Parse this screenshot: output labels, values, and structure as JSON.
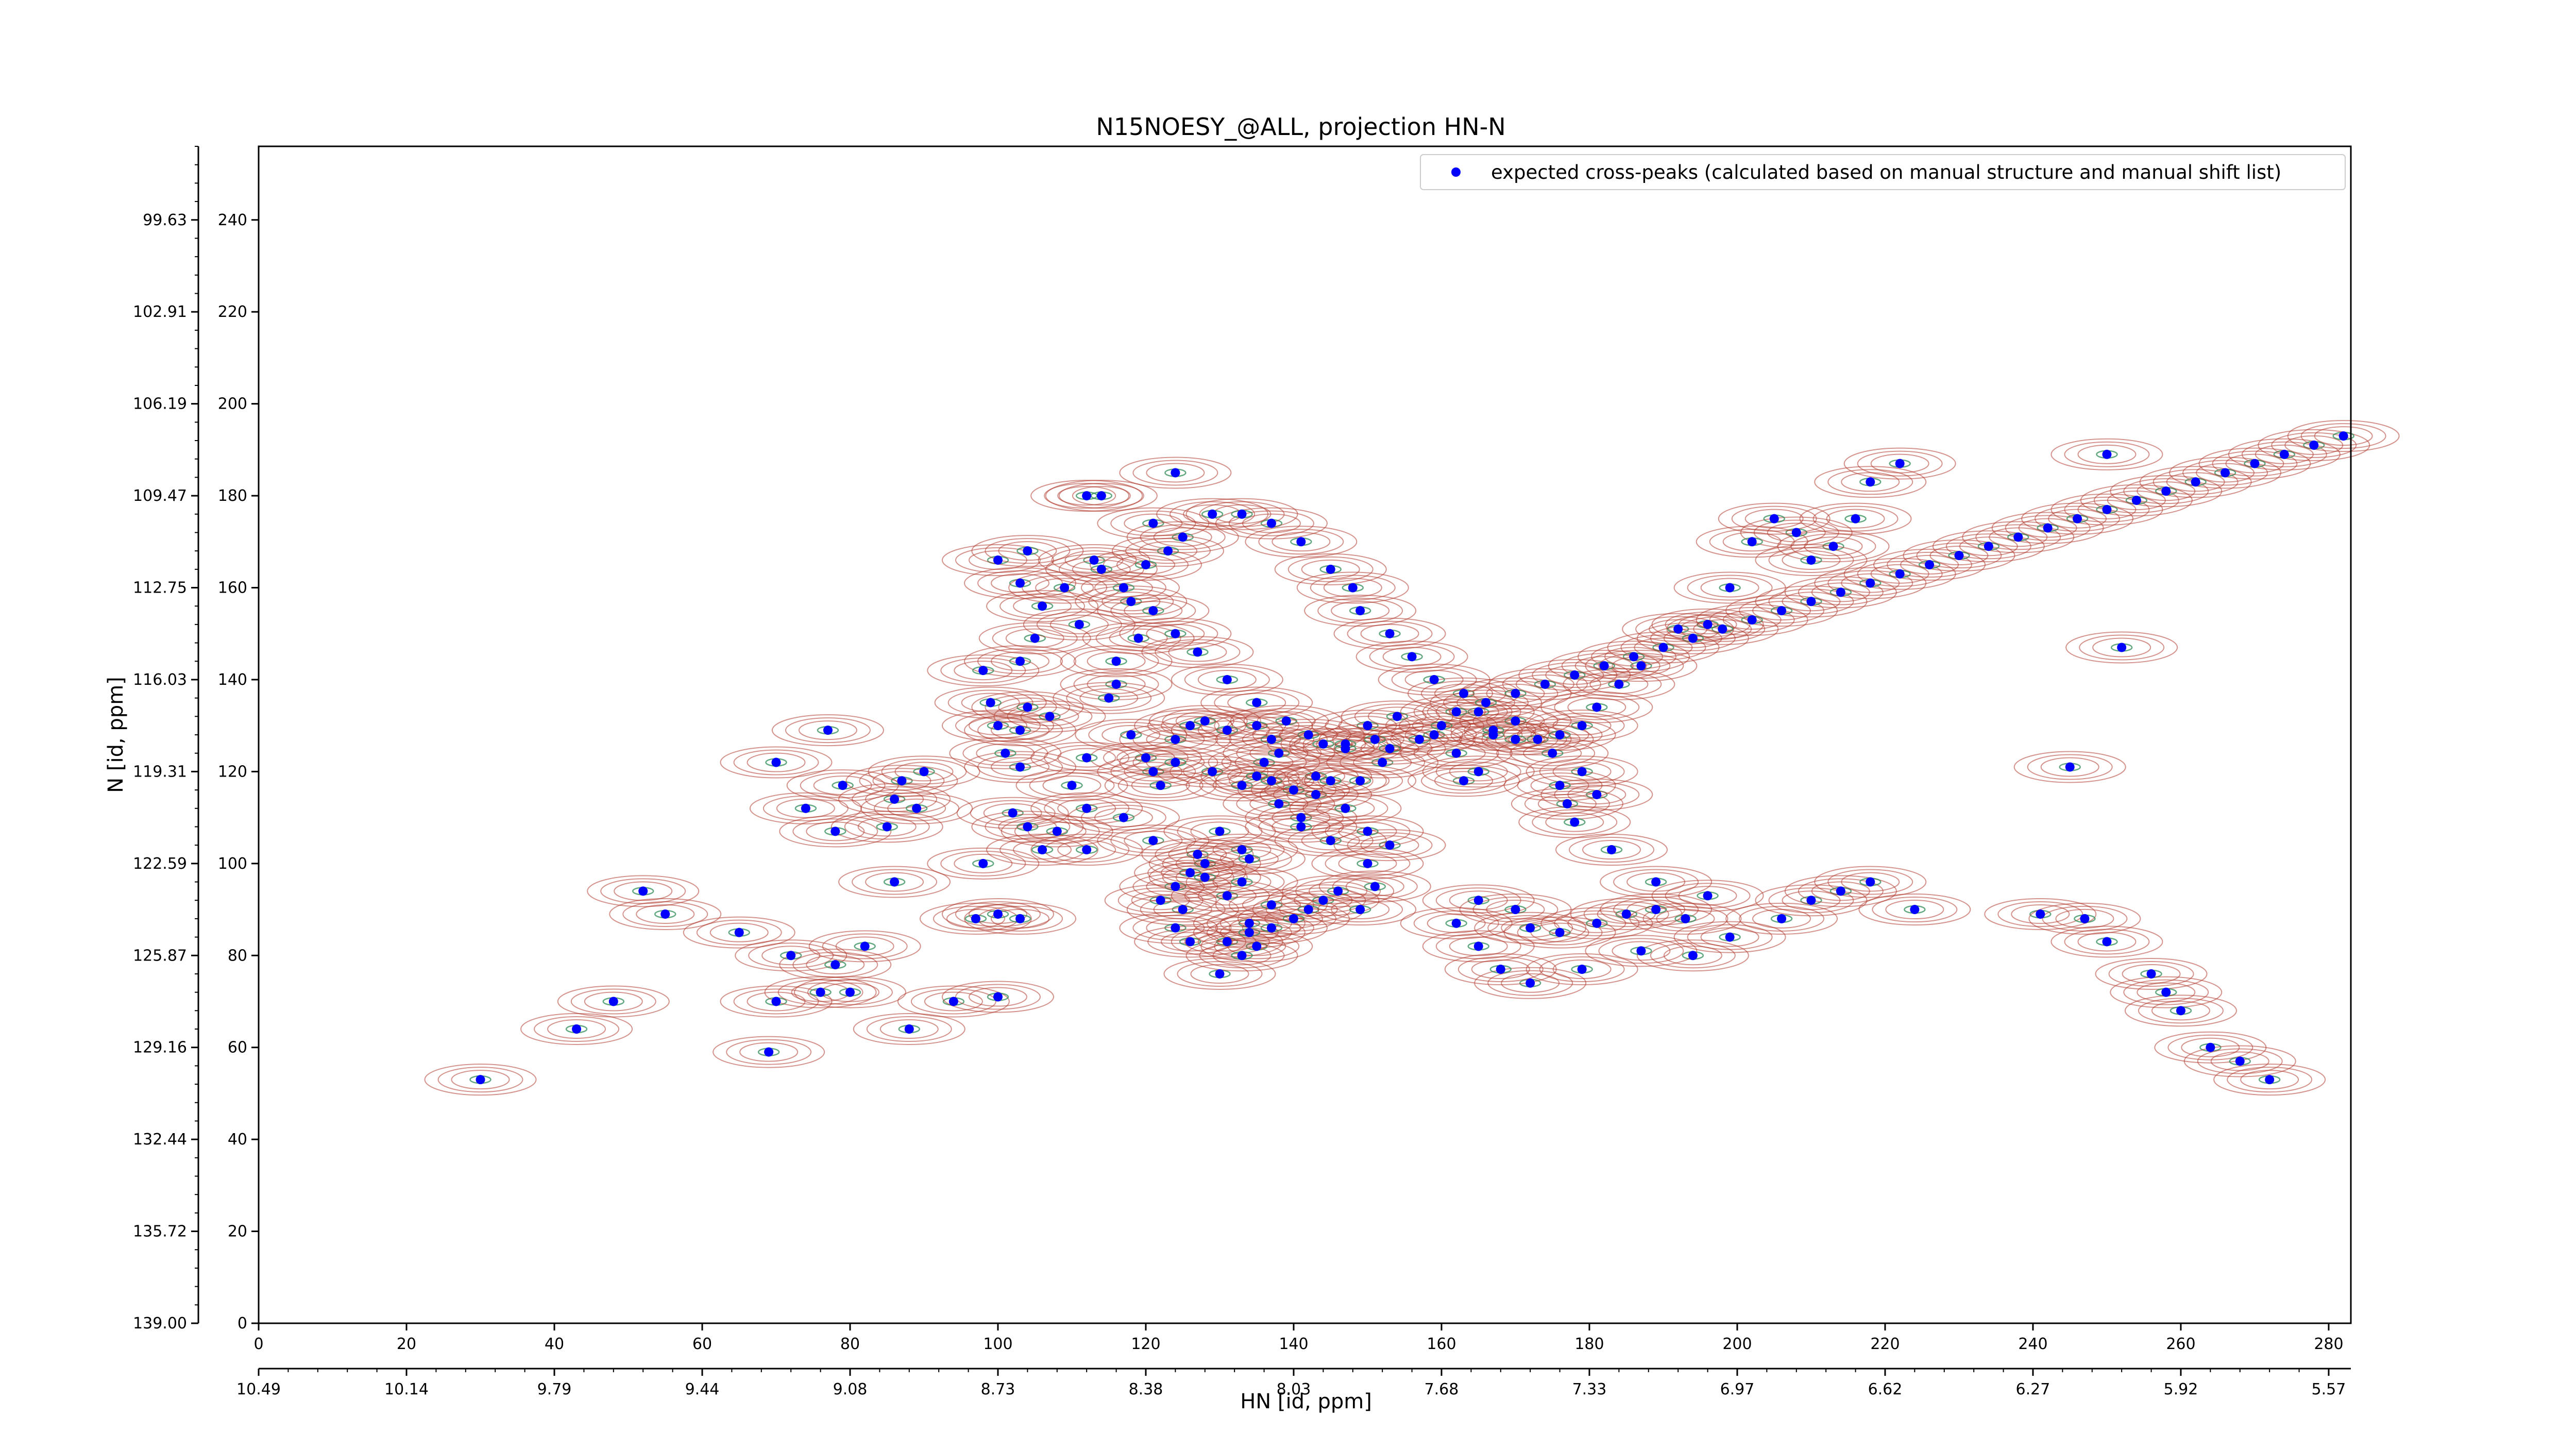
{
  "chart_data": {
    "type": "scatter",
    "title": "N15NOESY_@ALL, projection HN-N",
    "xlabel": "HN [id, ppm]",
    "ylabel": "N [id, ppm]",
    "x_index_ticks": [
      "0",
      "20",
      "40",
      "60",
      "80",
      "100",
      "120",
      "140",
      "160",
      "180",
      "200",
      "220",
      "240",
      "260",
      "280"
    ],
    "x_ppm_ticks": [
      "10.49",
      "10.14",
      "9.79",
      "9.44",
      "9.08",
      "8.73",
      "8.38",
      "8.03",
      "7.68",
      "7.33",
      "6.97",
      "6.62",
      "6.27",
      "5.92",
      "5.57"
    ],
    "y_index_ticks": [
      "0",
      "20",
      "40",
      "60",
      "80",
      "100",
      "120",
      "140",
      "160",
      "180",
      "200",
      "220",
      "240"
    ],
    "y_ppm_ticks": [
      "139.00",
      "135.72",
      "132.44",
      "129.16",
      "125.87",
      "122.59",
      "119.31",
      "116.03",
      "112.75",
      "109.47",
      "106.19",
      "102.91",
      "99.63"
    ],
    "xlim": [
      0,
      283
    ],
    "ylim": [
      0,
      256
    ],
    "grid": false,
    "legend_position": "top-right",
    "series": [
      {
        "name": "expected cross-peaks (calculated based on manual structure and manual shift list)",
        "color": "#0000ff",
        "points": [
          [
            30,
            53
          ],
          [
            43,
            64
          ],
          [
            48,
            70
          ],
          [
            55,
            89
          ],
          [
            52,
            94
          ],
          [
            65,
            85
          ],
          [
            69,
            59
          ],
          [
            70,
            70
          ],
          [
            72,
            80
          ],
          [
            76,
            72
          ],
          [
            78,
            78
          ],
          [
            80,
            72
          ],
          [
            82,
            82
          ],
          [
            78,
            107
          ],
          [
            79,
            117
          ],
          [
            70,
            122
          ],
          [
            74,
            112
          ],
          [
            77,
            129
          ],
          [
            86,
            96
          ],
          [
            85,
            108
          ],
          [
            86,
            114
          ],
          [
            89,
            112
          ],
          [
            87,
            118
          ],
          [
            90,
            120
          ],
          [
            88,
            64
          ],
          [
            94,
            70
          ],
          [
            97,
            88
          ],
          [
            100,
            89
          ],
          [
            103,
            88
          ],
          [
            100,
            71
          ],
          [
            98,
            100
          ],
          [
            102,
            111
          ],
          [
            104,
            108
          ],
          [
            103,
            121
          ],
          [
            101,
            124
          ],
          [
            100,
            130
          ],
          [
            103,
            129
          ],
          [
            103,
            144
          ],
          [
            105,
            149
          ],
          [
            107,
            132
          ],
          [
            104,
            134
          ],
          [
            99,
            135
          ],
          [
            98,
            142
          ],
          [
            100,
            166
          ],
          [
            103,
            161
          ],
          [
            104,
            168
          ],
          [
            106,
            156
          ],
          [
            109,
            160
          ],
          [
            111,
            152
          ],
          [
            113,
            166
          ],
          [
            112,
            180
          ],
          [
            114,
            180
          ],
          [
            121,
            174
          ],
          [
            124,
            185
          ],
          [
            114,
            164
          ],
          [
            118,
            157
          ],
          [
            116,
            144
          ],
          [
            119,
            149
          ],
          [
            116,
            139
          ],
          [
            115,
            136
          ],
          [
            118,
            128
          ],
          [
            120,
            123
          ],
          [
            121,
            120
          ],
          [
            122,
            117
          ],
          [
            112,
            123
          ],
          [
            110,
            117
          ],
          [
            112,
            112
          ],
          [
            108,
            107
          ],
          [
            106,
            103
          ],
          [
            112,
            103
          ],
          [
            117,
            110
          ],
          [
            121,
            105
          ],
          [
            127,
            102
          ],
          [
            128,
            100
          ],
          [
            130,
            107
          ],
          [
            133,
            103
          ],
          [
            134,
            101
          ],
          [
            125,
            90
          ],
          [
            124,
            86
          ],
          [
            126,
            83
          ],
          [
            122,
            92
          ],
          [
            124,
            95
          ],
          [
            126,
            98
          ],
          [
            128,
            97
          ],
          [
            131,
            93
          ],
          [
            133,
            96
          ],
          [
            134,
            87
          ],
          [
            137,
            91
          ],
          [
            135,
            82
          ],
          [
            130,
            76
          ],
          [
            131,
            83
          ],
          [
            133,
            80
          ],
          [
            134,
            85
          ],
          [
            137,
            86
          ],
          [
            140,
            88
          ],
          [
            142,
            90
          ],
          [
            144,
            92
          ],
          [
            146,
            94
          ],
          [
            149,
            90
          ],
          [
            151,
            95
          ],
          [
            150,
            100
          ],
          [
            153,
            104
          ],
          [
            150,
            107
          ],
          [
            145,
            105
          ],
          [
            141,
            110
          ],
          [
            143,
            115
          ],
          [
            147,
            112
          ],
          [
            143,
            119
          ],
          [
            140,
            116
          ],
          [
            137,
            118
          ],
          [
            133,
            117
          ],
          [
            129,
            120
          ],
          [
            124,
            122
          ],
          [
            124,
            127
          ],
          [
            126,
            130
          ],
          [
            128,
            131
          ],
          [
            131,
            129
          ],
          [
            135,
            130
          ],
          [
            137,
            127
          ],
          [
            138,
            124
          ],
          [
            136,
            122
          ],
          [
            135,
            119
          ],
          [
            138,
            113
          ],
          [
            141,
            108
          ],
          [
            145,
            118
          ],
          [
            149,
            118
          ],
          [
            152,
            122
          ],
          [
            147,
            125
          ],
          [
            150,
            130
          ],
          [
            154,
            132
          ],
          [
            159,
            128
          ],
          [
            162,
            124
          ],
          [
            163,
            118
          ],
          [
            165,
            120
          ],
          [
            167,
            128
          ],
          [
            170,
            131
          ],
          [
            173,
            127
          ],
          [
            175,
            124
          ],
          [
            179,
            120
          ],
          [
            181,
            115
          ],
          [
            177,
            113
          ],
          [
            176,
            117
          ],
          [
            178,
            109
          ],
          [
            183,
            103
          ],
          [
            189,
            96
          ],
          [
            196,
            93
          ],
          [
            194,
            80
          ],
          [
            187,
            81
          ],
          [
            179,
            77
          ],
          [
            172,
            74
          ],
          [
            168,
            77
          ],
          [
            165,
            82
          ],
          [
            162,
            87
          ],
          [
            165,
            92
          ],
          [
            170,
            90
          ],
          [
            172,
            86
          ],
          [
            176,
            85
          ],
          [
            181,
            87
          ],
          [
            185,
            89
          ],
          [
            189,
            90
          ],
          [
            193,
            88
          ],
          [
            199,
            84
          ],
          [
            206,
            88
          ],
          [
            210,
            92
          ],
          [
            214,
            94
          ],
          [
            218,
            96
          ],
          [
            224,
            90
          ],
          [
            241,
            89
          ],
          [
            247,
            88
          ],
          [
            250,
            83
          ],
          [
            256,
            76
          ],
          [
            258,
            72
          ],
          [
            260,
            68
          ],
          [
            264,
            60
          ],
          [
            268,
            57
          ],
          [
            272,
            53
          ],
          [
            245,
            121
          ],
          [
            252,
            147
          ],
          [
            250,
            189
          ],
          [
            222,
            187
          ],
          [
            218,
            183
          ],
          [
            216,
            175
          ],
          [
            213,
            169
          ],
          [
            210,
            166
          ],
          [
            208,
            172
          ],
          [
            205,
            175
          ],
          [
            202,
            170
          ],
          [
            199,
            160
          ],
          [
            196,
            152
          ],
          [
            192,
            151
          ],
          [
            187,
            143
          ],
          [
            184,
            139
          ],
          [
            181,
            134
          ],
          [
            179,
            130
          ],
          [
            176,
            128
          ],
          [
            170,
            127
          ],
          [
            167,
            129
          ],
          [
            165,
            133
          ],
          [
            163,
            137
          ],
          [
            159,
            140
          ],
          [
            156,
            145
          ],
          [
            153,
            150
          ],
          [
            149,
            155
          ],
          [
            148,
            160
          ],
          [
            145,
            164
          ],
          [
            141,
            170
          ],
          [
            137,
            174
          ],
          [
            133,
            176
          ],
          [
            129,
            176
          ],
          [
            125,
            171
          ],
          [
            123,
            168
          ],
          [
            120,
            165
          ],
          [
            117,
            160
          ],
          [
            121,
            155
          ],
          [
            124,
            150
          ],
          [
            127,
            146
          ],
          [
            131,
            140
          ],
          [
            135,
            135
          ],
          [
            139,
            131
          ],
          [
            142,
            128
          ],
          [
            144,
            126
          ],
          [
            147,
            126
          ],
          [
            151,
            127
          ],
          [
            153,
            125
          ],
          [
            157,
            127
          ],
          [
            160,
            130
          ],
          [
            162,
            133
          ],
          [
            166,
            135
          ],
          [
            170,
            137
          ],
          [
            174,
            139
          ],
          [
            178,
            141
          ],
          [
            182,
            143
          ],
          [
            186,
            145
          ],
          [
            190,
            147
          ],
          [
            194,
            149
          ],
          [
            198,
            151
          ],
          [
            202,
            153
          ],
          [
            206,
            155
          ],
          [
            210,
            157
          ],
          [
            214,
            159
          ],
          [
            218,
            161
          ],
          [
            222,
            163
          ],
          [
            226,
            165
          ],
          [
            230,
            167
          ],
          [
            234,
            169
          ],
          [
            238,
            171
          ],
          [
            242,
            173
          ],
          [
            246,
            175
          ],
          [
            250,
            177
          ],
          [
            254,
            179
          ],
          [
            258,
            181
          ],
          [
            262,
            183
          ],
          [
            266,
            185
          ],
          [
            270,
            187
          ],
          [
            274,
            189
          ],
          [
            278,
            191
          ],
          [
            282,
            193
          ]
        ]
      }
    ]
  }
}
